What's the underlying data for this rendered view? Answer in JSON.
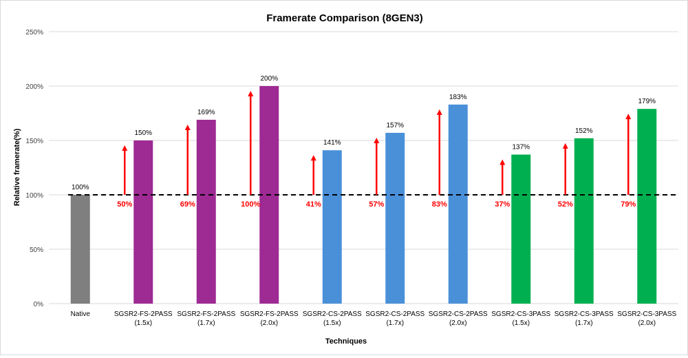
{
  "chart_data": {
    "type": "bar",
    "title": "Framerate Comparison (8GEN3)",
    "xlabel": "Techniques",
    "ylabel": "Relative framerate(%)",
    "ylim": [
      0,
      250
    ],
    "y_ticks": [
      0,
      50,
      100,
      150,
      200,
      250
    ],
    "y_tick_labels": [
      "0%",
      "50%",
      "100%",
      "150%",
      "200%",
      "250%"
    ],
    "grid": true,
    "legend": "none",
    "baseline_value": 100,
    "categories": [
      {
        "line1": "Native",
        "line2": ""
      },
      {
        "line1": "SGSR2-FS-2PASS",
        "line2": "(1.5x)"
      },
      {
        "line1": "SGSR2-FS-2PASS",
        "line2": "(1.7x)"
      },
      {
        "line1": "SGSR2-FS-2PASS",
        "line2": "(2.0x)"
      },
      {
        "line1": "SGSR2-CS-2PASS",
        "line2": "(1.5x)"
      },
      {
        "line1": "SGSR2-CS-2PASS",
        "line2": "(1.7x)"
      },
      {
        "line1": "SGSR2-CS-2PASS",
        "line2": "(2.0x)"
      },
      {
        "line1": "SGSR2-CS-3PASS",
        "line2": "(1.5x)"
      },
      {
        "line1": "SGSR2-CS-3PASS",
        "line2": "(1.7x)"
      },
      {
        "line1": "SGSR2-CS-3PASS",
        "line2": "(2.0x)"
      }
    ],
    "values": [
      100,
      150,
      169,
      200,
      141,
      157,
      183,
      137,
      152,
      179
    ],
    "value_labels": [
      "100%",
      "150%",
      "169%",
      "200%",
      "141%",
      "157%",
      "183%",
      "137%",
      "152%",
      "179%"
    ],
    "bar_colors": [
      "#7f7f7f",
      "#9e2a93",
      "#9e2a93",
      "#9e2a93",
      "#4a90d9",
      "#4a90d9",
      "#4a90d9",
      "#00b050",
      "#00b050",
      "#00b050"
    ],
    "gains": [
      {
        "index": 1,
        "label": "50%",
        "value": 50
      },
      {
        "index": 2,
        "label": "69%",
        "value": 69
      },
      {
        "index": 3,
        "label": "100%",
        "value": 100
      },
      {
        "index": 4,
        "label": "41%",
        "value": 41
      },
      {
        "index": 5,
        "label": "57%",
        "value": 57
      },
      {
        "index": 6,
        "label": "83%",
        "value": 83
      },
      {
        "index": 7,
        "label": "37%",
        "value": 37
      },
      {
        "index": 8,
        "label": "52%",
        "value": 52
      },
      {
        "index": 9,
        "label": "79%",
        "value": 79
      }
    ],
    "colors": {
      "gain_arrow": "#ff0000",
      "gridline": "#d9d9d9",
      "text": "#000000",
      "tick_text": "#404040"
    }
  }
}
